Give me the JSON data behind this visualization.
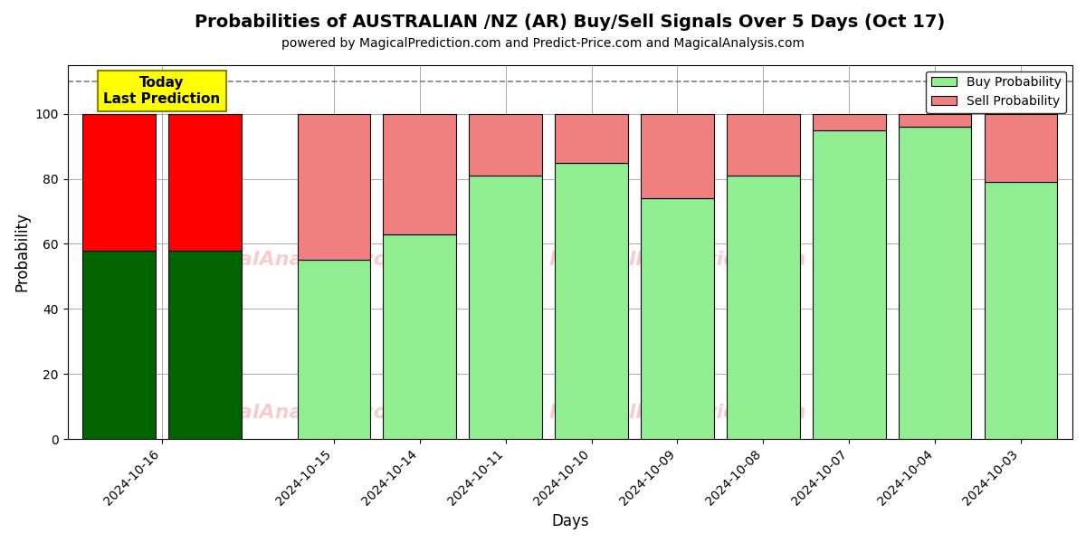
{
  "title": "Probabilities of AUSTRALIAN /NZ (AR) Buy/Sell Signals Over 5 Days (Oct 17)",
  "subtitle": "powered by MagicalPrediction.com and Predict-Price.com and MagicalAnalysis.com",
  "xlabel": "Days",
  "ylabel": "Probability",
  "categories": [
    "2024-10-16",
    "2024-10-15",
    "2024-10-14",
    "2024-10-11",
    "2024-10-10",
    "2024-10-09",
    "2024-10-08",
    "2024-10-07",
    "2024-10-04",
    "2024-10-03"
  ],
  "buy_values": [
    58,
    58,
    55,
    63,
    81,
    85,
    74,
    81,
    95,
    96,
    79
  ],
  "sell_values": [
    42,
    42,
    45,
    37,
    19,
    15,
    26,
    19,
    5,
    4,
    21
  ],
  "bar_positions": [
    0,
    1,
    2.5,
    3.5,
    4.5,
    5.5,
    6.5,
    7.5,
    8.5,
    9.5,
    10.5
  ],
  "xtick_positions": [
    0.5,
    2.5,
    3.5,
    4.5,
    5.5,
    6.5,
    7.5,
    8.5,
    9.5,
    10.5
  ],
  "xtick_labels": [
    "2024-10-16",
    "2024-10-15",
    "2024-10-14",
    "2024-10-11",
    "2024-10-10",
    "2024-10-09",
    "2024-10-08",
    "2024-10-07",
    "2024-10-04",
    "2024-10-03"
  ],
  "today_bar_buy_color": "#006400",
  "today_bar_sell_color": "#FF0000",
  "normal_bar_buy_color": "#90EE90",
  "normal_bar_sell_color": "#F08080",
  "bar_edge_color": "#000000",
  "bar_width": 0.85,
  "dashed_line_y": 110,
  "ylim": [
    0,
    115
  ],
  "yticks": [
    0,
    20,
    40,
    60,
    80,
    100
  ],
  "grid_color": "#aaaaaa",
  "background_color": "#ffffff",
  "today_label": "Today\nLast Prediction",
  "today_label_bg": "#FFFF00",
  "legend_buy_label": "Buy Probability",
  "legend_sell_label": "Sell Probability",
  "watermark_color": "#F08080",
  "watermark_alpha": 0.4
}
